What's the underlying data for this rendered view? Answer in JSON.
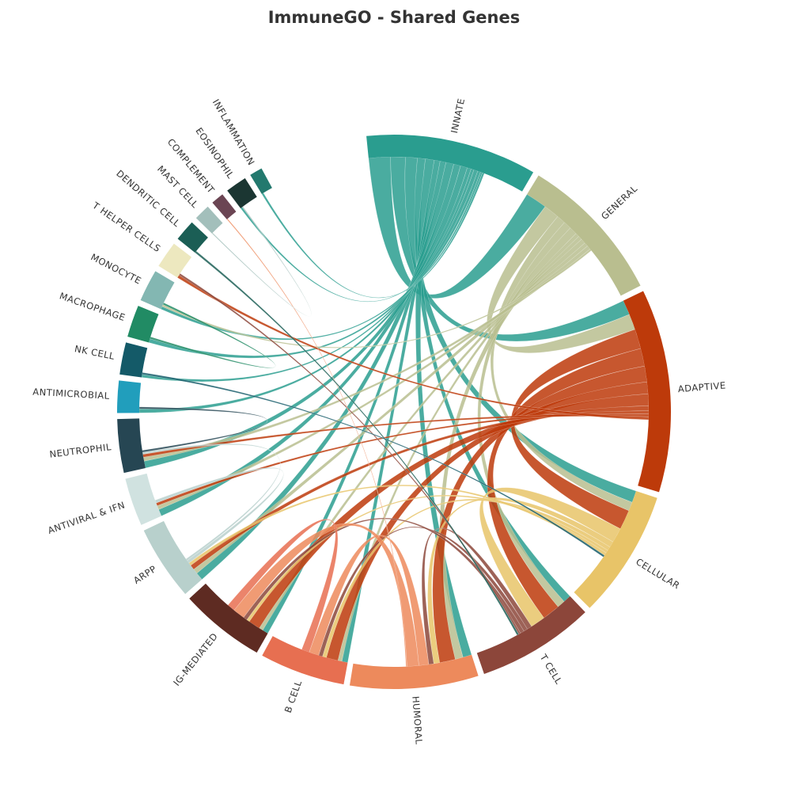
{
  "title": "ImmuneGO - Shared Genes",
  "chart_data": {
    "type": "chord",
    "title": "ImmuneGO - Shared Genes",
    "groups": [
      {
        "name": "INNATE",
        "color": "#2a9d8f",
        "value": 16
      },
      {
        "name": "GENERAL",
        "color": "#b9be8f",
        "value": 14
      },
      {
        "name": "ADAPTIVE",
        "color": "#bd3a0a",
        "value": 19
      },
      {
        "name": "CELLULAR",
        "color": "#e8c468",
        "value": 12
      },
      {
        "name": "T CELL",
        "color": "#8c463a",
        "value": 11
      },
      {
        "name": "HUMORAL",
        "color": "#ed8a5c",
        "value": 12
      },
      {
        "name": "B CELL",
        "color": "#e76f51",
        "value": 8
      },
      {
        "name": "IG-MEDIATED",
        "color": "#5e2b22",
        "value": 8
      },
      {
        "name": "ARPP",
        "color": "#b8d0cc",
        "value": 7
      },
      {
        "name": "ANTIVIRAL & IFN",
        "color": "#d0e2e0",
        "value": 4.5
      },
      {
        "name": "NEUTROPHIL",
        "color": "#264653",
        "value": 5
      },
      {
        "name": "ANTIMICROBIAL",
        "color": "#219ebc",
        "value": 3
      },
      {
        "name": "NK CELL",
        "color": "#145a68",
        "value": 3
      },
      {
        "name": "MACROPHAGE",
        "color": "#218b64",
        "value": 3
      },
      {
        "name": "MONOCYTE",
        "color": "#83b7b2",
        "value": 3
      },
      {
        "name": "T HELPER CELLS",
        "color": "#ede8bf",
        "value": 2.5
      },
      {
        "name": "DENDRITIC CELL",
        "color": "#1b5e55",
        "value": 2
      },
      {
        "name": "MAST CELL",
        "color": "#a3bfbb",
        "value": 1.5
      },
      {
        "name": "COMPLEMENT",
        "color": "#6b4553",
        "value": 1.2
      },
      {
        "name": "EOSINOPHIL",
        "color": "#1b3632",
        "value": 2
      },
      {
        "name": "INFLAMMATION",
        "color": "#23796e",
        "value": 1.2
      }
    ],
    "links": [
      {
        "source": "INNATE",
        "target": "GENERAL",
        "value": 2.2
      },
      {
        "source": "INNATE",
        "target": "ADAPTIVE",
        "value": 1.5
      },
      {
        "source": "INNATE",
        "target": "CELLULAR",
        "value": 1.2
      },
      {
        "source": "INNATE",
        "target": "T CELL",
        "value": 0.8
      },
      {
        "source": "INNATE",
        "target": "HUMORAL",
        "value": 0.9
      },
      {
        "source": "INNATE",
        "target": "B CELL",
        "value": 0.6
      },
      {
        "source": "INNATE",
        "target": "IG-MEDIATED",
        "value": 0.6
      },
      {
        "source": "INNATE",
        "target": "ARPP",
        "value": 0.8
      },
      {
        "source": "INNATE",
        "target": "ANTIVIRAL & IFN",
        "value": 0.7
      },
      {
        "source": "INNATE",
        "target": "NEUTROPHIL",
        "value": 0.7
      },
      {
        "source": "INNATE",
        "target": "ANTIMICROBIAL",
        "value": 0.4
      },
      {
        "source": "INNATE",
        "target": "NK CELL",
        "value": 0.3
      },
      {
        "source": "INNATE",
        "target": "MACROPHAGE",
        "value": 0.4
      },
      {
        "source": "INNATE",
        "target": "MONOCYTE",
        "value": 0.3
      },
      {
        "source": "INNATE",
        "target": "EOSINOPHIL",
        "value": 0.2
      },
      {
        "source": "INNATE",
        "target": "INFLAMMATION",
        "value": 0.2
      },
      {
        "source": "GENERAL",
        "target": "ADAPTIVE",
        "value": 1.6
      },
      {
        "source": "GENERAL",
        "target": "CELLULAR",
        "value": 0.9
      },
      {
        "source": "GENERAL",
        "target": "T CELL",
        "value": 0.8
      },
      {
        "source": "GENERAL",
        "target": "HUMORAL",
        "value": 0.8
      },
      {
        "source": "GENERAL",
        "target": "B CELL",
        "value": 0.4
      },
      {
        "source": "GENERAL",
        "target": "IG-MEDIATED",
        "value": 0.4
      },
      {
        "source": "GENERAL",
        "target": "ARPP",
        "value": 0.5
      },
      {
        "source": "GENERAL",
        "target": "ANTIVIRAL & IFN",
        "value": 0.4
      },
      {
        "source": "GENERAL",
        "target": "NEUTROPHIL",
        "value": 0.4
      },
      {
        "source": "GENERAL",
        "target": "MONOCYTE",
        "value": 0.2
      },
      {
        "source": "ADAPTIVE",
        "target": "CELLULAR",
        "value": 2.0
      },
      {
        "source": "ADAPTIVE",
        "target": "T CELL",
        "value": 1.8
      },
      {
        "source": "ADAPTIVE",
        "target": "HUMORAL",
        "value": 1.6
      },
      {
        "source": "ADAPTIVE",
        "target": "B CELL",
        "value": 1.2
      },
      {
        "source": "ADAPTIVE",
        "target": "IG-MEDIATED",
        "value": 1.2
      },
      {
        "source": "ADAPTIVE",
        "target": "ARPP",
        "value": 0.5
      },
      {
        "source": "ADAPTIVE",
        "target": "ANTIVIRAL & IFN",
        "value": 0.3
      },
      {
        "source": "ADAPTIVE",
        "target": "NEUTROPHIL",
        "value": 0.3
      },
      {
        "source": "ADAPTIVE",
        "target": "T HELPER CELLS",
        "value": 0.3
      },
      {
        "source": "CELLULAR",
        "target": "T CELL",
        "value": 1.5
      },
      {
        "source": "CELLULAR",
        "target": "HUMORAL",
        "value": 0.6
      },
      {
        "source": "CELLULAR",
        "target": "B CELL",
        "value": 0.4
      },
      {
        "source": "CELLULAR",
        "target": "IG-MEDIATED",
        "value": 0.3
      },
      {
        "source": "CELLULAR",
        "target": "ARPP",
        "value": 0.3
      },
      {
        "source": "T CELL",
        "target": "HUMORAL",
        "value": 0.5
      },
      {
        "source": "T CELL",
        "target": "B CELL",
        "value": 0.4
      },
      {
        "source": "T CELL",
        "target": "IG-MEDIATED",
        "value": 0.4
      },
      {
        "source": "T CELL",
        "target": "T HELPER CELLS",
        "value": 0.2
      },
      {
        "source": "HUMORAL",
        "target": "B CELL",
        "value": 1.0
      },
      {
        "source": "HUMORAL",
        "target": "IG-MEDIATED",
        "value": 1.2
      },
      {
        "source": "HUMORAL",
        "target": "COMPLEMENT",
        "value": 0.1
      },
      {
        "source": "B CELL",
        "target": "IG-MEDIATED",
        "value": 0.8
      },
      {
        "source": "ARPP",
        "target": "ANTIVIRAL & IFN",
        "value": 0.3
      },
      {
        "source": "ARPP",
        "target": "NEUTROPHIL",
        "value": 0.2
      },
      {
        "source": "NEUTROPHIL",
        "target": "ANTIMICROBIAL",
        "value": 0.2
      },
      {
        "source": "MACROPHAGE",
        "target": "MONOCYTE",
        "value": 0.2
      },
      {
        "source": "DENDRITIC CELL",
        "target": "T CELL",
        "value": 0.2
      },
      {
        "source": "MAST CELL",
        "target": "EOSINOPHIL",
        "value": 0.1
      },
      {
        "source": "NK CELL",
        "target": "CELLULAR",
        "value": 0.2
      }
    ]
  }
}
